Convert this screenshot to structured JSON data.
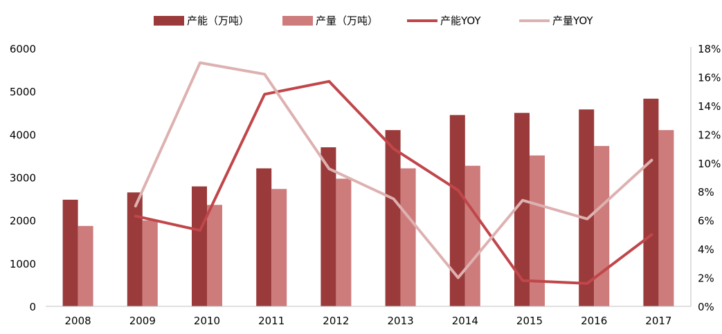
{
  "chart_data": {
    "type": "bar",
    "categories": [
      "2008",
      "2009",
      "2010",
      "2011",
      "2012",
      "2013",
      "2014",
      "2015",
      "2016",
      "2017"
    ],
    "series": [
      {
        "name": "产能（万吨）",
        "kind": "bar",
        "axis": "left",
        "color": "#9b3a3a",
        "values": [
          2480,
          2650,
          2790,
          3210,
          3700,
          4100,
          4450,
          4500,
          4580,
          4830
        ]
      },
      {
        "name": "产量（万吨）",
        "kind": "bar",
        "axis": "left",
        "color": "#cd7b7b",
        "values": [
          1870,
          2000,
          2360,
          2730,
          2970,
          3210,
          3270,
          3510,
          3730,
          4100
        ]
      },
      {
        "name": "产能YOY",
        "kind": "line",
        "axis": "right",
        "color": "#c0464a",
        "values": [
          null,
          6.3,
          5.3,
          14.8,
          15.7,
          11.0,
          8.1,
          1.8,
          1.6,
          5.0
        ]
      },
      {
        "name": "产量YOY",
        "kind": "line",
        "axis": "right",
        "color": "#deb1b1",
        "values": [
          null,
          7.0,
          17.0,
          16.2,
          9.6,
          7.5,
          2.0,
          7.4,
          6.1,
          10.2
        ]
      }
    ],
    "y_left": {
      "min": 0,
      "max": 6000,
      "ticks": [
        "0",
        "1000",
        "2000",
        "3000",
        "4000",
        "5000",
        "6000"
      ]
    },
    "y_right": {
      "min": 0,
      "max": 18,
      "ticks": [
        "0%",
        "2%",
        "4%",
        "6%",
        "8%",
        "10%",
        "12%",
        "14%",
        "16%",
        "18%"
      ]
    },
    "grid": false,
    "legend_position": "top-center"
  }
}
